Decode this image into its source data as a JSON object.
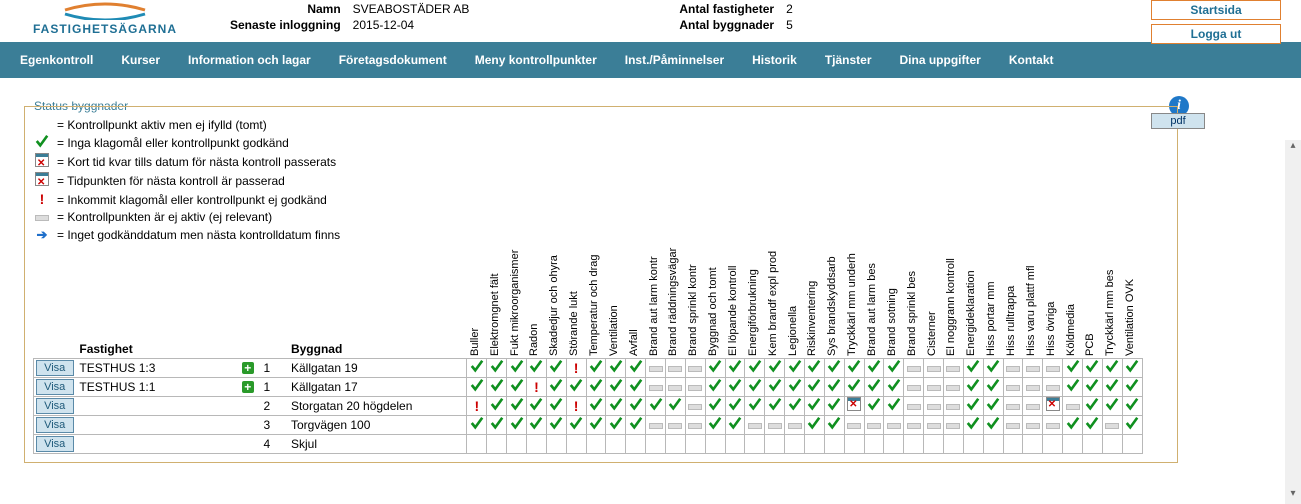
{
  "header": {
    "logo_text": "FASTIGHETSÄGARNA",
    "name_label": "Namn",
    "name_value": "SVEABOSTÄDER AB",
    "login_label": "Senaste inloggning",
    "login_value": "2015-12-04",
    "props_label": "Antal fastigheter",
    "props_value": "2",
    "bldg_label": "Antal byggnader",
    "bldg_value": "5",
    "btn_home": "Startsida",
    "btn_logout": "Logga ut"
  },
  "nav": [
    "Egenkontroll",
    "Kurser",
    "Information och lagar",
    "Företagsdokument",
    "Meny kontrollpunkter",
    "Inst./Påminnelser",
    "Historik",
    "Tjänster",
    "Dina uppgifter",
    "Kontakt"
  ],
  "panel_title": "Status byggnader",
  "pdf_label": "pdf",
  "legend": [
    {
      "icon": "",
      "text": "Kontrollpunkt aktiv men ej ifylld (tomt)"
    },
    {
      "icon": "check",
      "text": "Inga klagomål eller kontrollpunkt godkänd"
    },
    {
      "icon": "cal",
      "text": "Kort tid kvar tills datum för nästa kontroll passerats"
    },
    {
      "icon": "calx",
      "text": "Tidpunkten för nästa kontroll är passerad"
    },
    {
      "icon": "excl",
      "text": "Inkommit klagomål eller kontrollpunkt ej godkänd"
    },
    {
      "icon": "dash",
      "text": "Kontrollpunkten är ej aktiv (ej relevant)"
    },
    {
      "icon": "arrow",
      "text": "Inget godkänddatum men nästa kontrolldatum finns"
    }
  ],
  "col_headers": {
    "fastighet": "Fastighet",
    "byggnad": "Byggnad"
  },
  "columns": [
    "Buller",
    "Elektromgnet fält",
    "Fukt mikroorganismer",
    "Radon",
    "Skadedjur och ohyra",
    "Störande lukt",
    "Temperatur och drag",
    "Ventilation",
    "Avfall",
    "Brand aut larm kontr",
    "Brand räddningsvägar",
    "Brand sprinkl kontr",
    "Byggnad och tomt",
    "El löpande kontroll",
    "Energiförbrukning",
    "Kem brandf expl prod",
    "Legionella",
    "Riskinventering",
    "Sys brandskyddsarb",
    "Tryckkärl mm underh",
    "Brand aut larm bes",
    "Brand sotning",
    "Brand sprinkl bes",
    "Cisterner",
    "El noggrann kontroll",
    "Energideklaration",
    "Hiss portar mm",
    "Hiss rulltrappa",
    "Hiss varu plattf mfl",
    "Hiss övriga",
    "Köldmedia",
    "PCB",
    "Tryckkärl mm bes",
    "Ventilation OVK"
  ],
  "visa_label": "Visa",
  "rows": [
    {
      "fastighet": "TESTHUS 1:3",
      "plus": true,
      "num": "1",
      "byggnad": "Källgatan 19",
      "cells": [
        "v",
        "v",
        "v",
        "v",
        "v",
        "!",
        "v",
        "v",
        "v",
        "-",
        "-",
        "-",
        "v",
        "v",
        "v",
        "v",
        "v",
        "v",
        "v",
        "v",
        "v",
        "v",
        "-",
        "-",
        "-",
        "v",
        "v",
        "-",
        "-",
        "-",
        "v",
        "v",
        "v",
        "v"
      ]
    },
    {
      "fastighet": "TESTHUS 1:1",
      "plus": true,
      "num": "1",
      "byggnad": "Källgatan 17",
      "cells": [
        "v",
        "v",
        "v",
        "!",
        "v",
        "v",
        "v",
        "v",
        "v",
        "-",
        "-",
        "-",
        "v",
        "v",
        "v",
        "v",
        "v",
        "v",
        "v",
        "v",
        "v",
        "v",
        "-",
        "-",
        "-",
        "v",
        "v",
        "-",
        "-",
        "-",
        "v",
        "v",
        "v",
        "v"
      ]
    },
    {
      "fastighet": "",
      "plus": false,
      "num": "2",
      "byggnad": "Storgatan 20 högdelen",
      "cells": [
        "!",
        "v",
        "v",
        "v",
        "v",
        "!",
        "v",
        "v",
        "v",
        "v",
        "v",
        "-",
        "v",
        "v",
        "v",
        "v",
        "v",
        "v",
        "v",
        "x",
        "v",
        "v",
        "-",
        "-",
        "-",
        "v",
        "v",
        "-",
        "-",
        "x",
        "-",
        "v",
        "v",
        "v"
      ]
    },
    {
      "fastighet": "",
      "plus": false,
      "num": "3",
      "byggnad": "Torgvägen 100",
      "cells": [
        "v",
        "v",
        "v",
        "v",
        "v",
        "v",
        "v",
        "v",
        "v",
        "-",
        "-",
        "-",
        "v",
        "v",
        "-",
        "-",
        "-",
        "v",
        "v",
        "-",
        "-",
        "-",
        "-",
        "-",
        "-",
        "v",
        "v",
        "-",
        "-",
        "-",
        "v",
        "v",
        "-",
        "v"
      ]
    },
    {
      "fastighet": "",
      "plus": false,
      "num": "4",
      "byggnad": "Skjul",
      "cells": [
        "",
        "",
        "",
        "",
        "",
        "",
        "",
        "",
        "",
        "",
        "",
        "",
        "",
        "",
        "",
        "",
        "",
        "",
        "",
        "",
        "",
        "",
        "",
        "",
        "",
        "",
        "",
        "",
        "",
        "",
        "",
        "",
        "",
        ""
      ]
    }
  ],
  "colors": {
    "navbar": "#3b7e97",
    "accent": "#1f6f94",
    "btn_border": "#e08030",
    "check": "#109020",
    "excl": "#c00"
  }
}
